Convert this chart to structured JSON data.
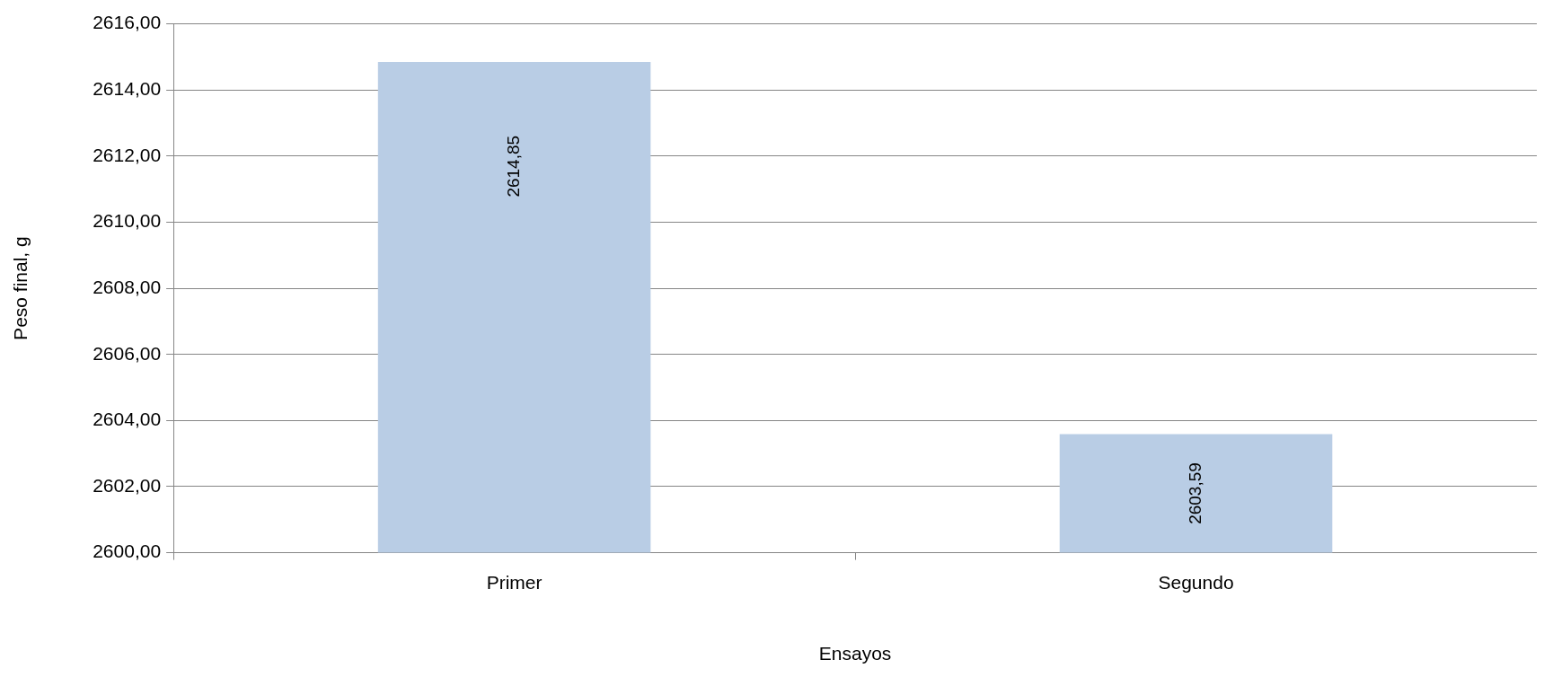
{
  "chart_data": {
    "type": "bar",
    "xlabel": "Ensayos",
    "ylabel": "Peso final, g",
    "categories": [
      "Primer",
      "Segundo"
    ],
    "series": [
      {
        "color": "#b9cde5",
        "values": [
          2614.85,
          2603.59
        ],
        "value_labels": [
          "2614,85",
          "2603,59"
        ]
      }
    ],
    "ylim": [
      2600,
      2616
    ],
    "yticks": [
      {
        "value": 2600,
        "label": "2600,00"
      },
      {
        "value": 2602,
        "label": "2602,00"
      },
      {
        "value": 2604,
        "label": "2604,00"
      },
      {
        "value": 2606,
        "label": "2606,00"
      },
      {
        "value": 2608,
        "label": "2608,00"
      },
      {
        "value": 2610,
        "label": "2610,00"
      },
      {
        "value": 2612,
        "label": "2612,00"
      },
      {
        "value": 2614,
        "label": "2614,00"
      },
      {
        "value": 2616,
        "label": "2616,00"
      }
    ],
    "grid": "y",
    "legend": false
  }
}
